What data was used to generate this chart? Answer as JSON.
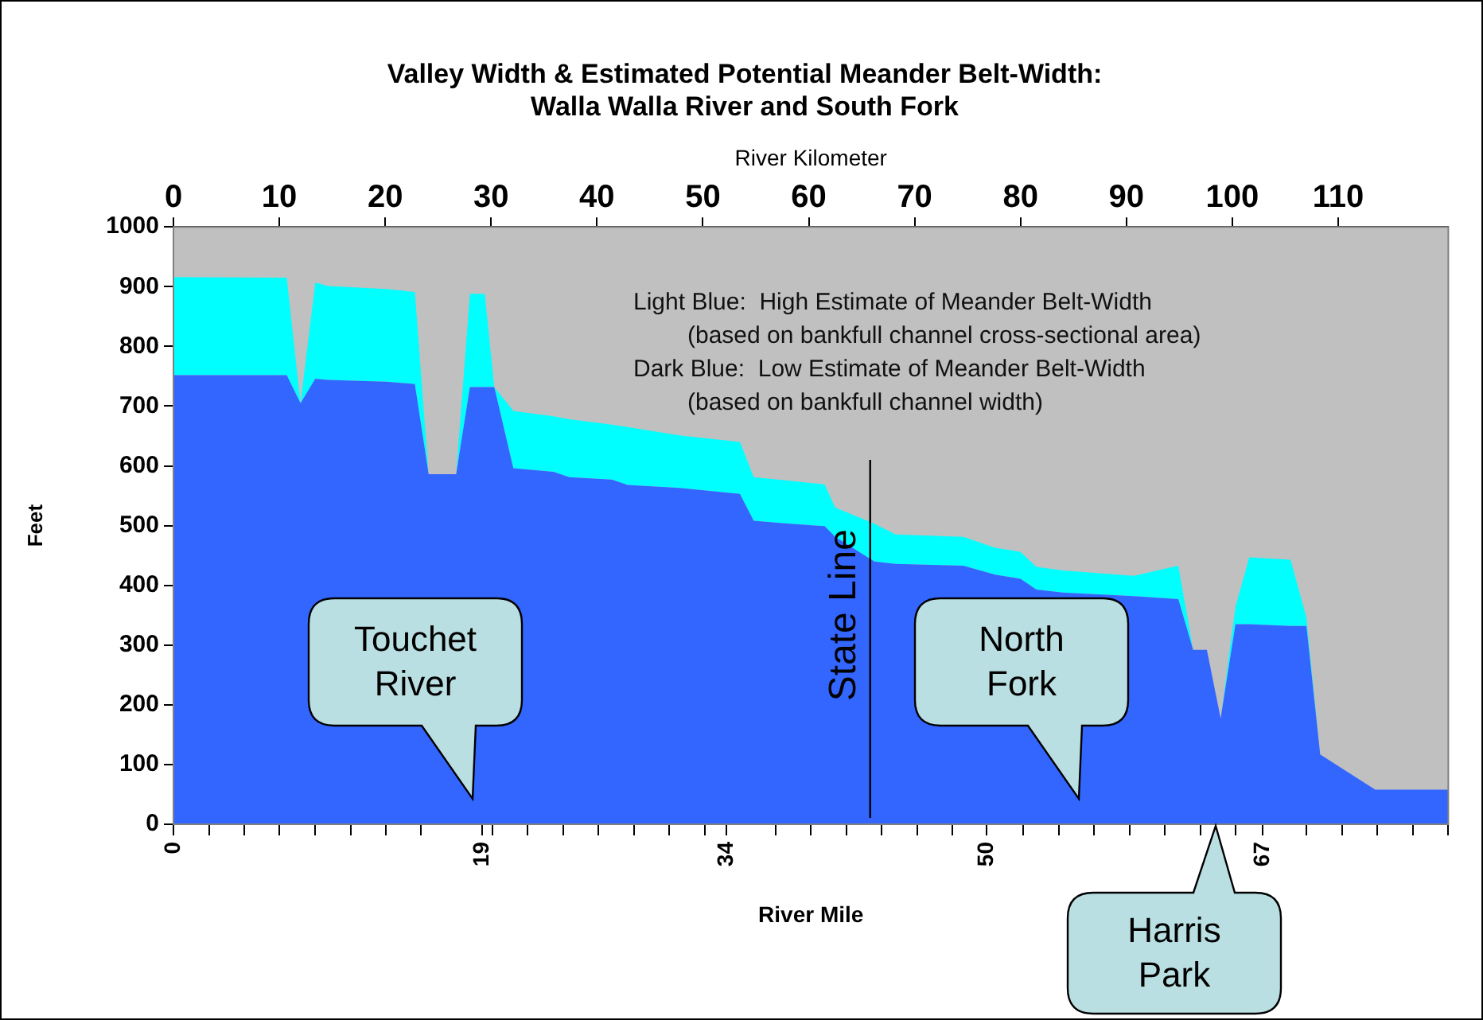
{
  "chart_data": {
    "type": "area",
    "title": "Valley Width & Estimated Potential Meander Belt-Width:\nWalla Walla River and South Fork",
    "xlabel": "River Kilometer",
    "x2label": "River Mile",
    "ylabel": "Feet",
    "stacked": true,
    "legend": false,
    "x": [
      0,
      10.7,
      12.0,
      13.4,
      14.6,
      20.1,
      22.8,
      24.1,
      26.7,
      28.0,
      29.4,
      30.3,
      32.1,
      35.9,
      37.4,
      41.4,
      42.9,
      47.8,
      53.5,
      54.8,
      58.2,
      61.5,
      62.5,
      66.2,
      68.2,
      74.6,
      77.6,
      80.0,
      81.5,
      84.0,
      90.7,
      94.9,
      96.3,
      97.6,
      98.9,
      100.3,
      101.6,
      105.5,
      107.0,
      108.3,
      113.5,
      120.4
    ],
    "series": [
      {
        "color": "#3366ff",
        "values": [
          752,
          752,
          705,
          746,
          744,
          741,
          737,
          586,
          586,
          732,
          732,
          732,
          596,
          590,
          581,
          577,
          568,
          563,
          553,
          508,
          503,
          499,
          481,
          440,
          436,
          433,
          418,
          411,
          393,
          388,
          382,
          377,
          292,
          292,
          177,
          335,
          335,
          332,
          332,
          117,
          58,
          58
        ]
      },
      {
        "color": "#00ffff",
        "values": [
          164,
          163,
          0,
          161,
          157,
          155,
          154,
          0,
          0,
          156,
          156,
          0,
          96,
          93,
          97,
          92,
          97,
          88,
          87,
          73,
          72,
          70,
          49,
          63,
          49,
          48,
          45,
          45,
          38,
          37,
          34,
          56,
          0,
          0,
          0,
          29,
          112,
          111,
          14,
          0,
          0,
          0
        ]
      }
    ],
    "xlim": [
      0,
      120.4
    ],
    "xticks": [
      0,
      10,
      20,
      30,
      40,
      50,
      60,
      70,
      80,
      90,
      100,
      110
    ],
    "x2lim": [
      0,
      78.4
    ],
    "x2ticks": [
      0,
      {
        "value": 2.18,
        "label": null
      },
      {
        "value": 4.36,
        "label": null
      },
      {
        "value": 6.53,
        "label": null
      },
      {
        "value": 8.71,
        "label": null
      },
      {
        "value": 10.89,
        "label": null
      },
      {
        "value": 13.07,
        "label": null
      },
      {
        "value": 15.24,
        "label": null
      },
      19,
      {
        "value": 19.6,
        "label": null
      },
      {
        "value": 21.78,
        "label": null
      },
      {
        "value": 23.96,
        "label": null
      },
      {
        "value": 26.13,
        "label": null
      },
      {
        "value": 28.31,
        "label": null
      },
      {
        "value": 30.49,
        "label": null
      },
      {
        "value": 32.67,
        "label": null
      },
      34,
      {
        "value": 37.02,
        "label": null
      },
      {
        "value": 39.2,
        "label": null
      },
      {
        "value": 41.38,
        "label": null
      },
      {
        "value": 43.56,
        "label": null
      },
      {
        "value": 45.73,
        "label": null
      },
      {
        "value": 47.91,
        "label": null
      },
      50,
      {
        "value": 52.27,
        "label": null
      },
      {
        "value": 54.44,
        "label": null
      },
      {
        "value": 56.62,
        "label": null
      },
      {
        "value": 58.8,
        "label": null
      },
      {
        "value": 60.98,
        "label": null
      },
      {
        "value": 63.16,
        "label": null
      },
      {
        "value": 65.33,
        "label": null
      },
      67,
      {
        "value": 69.69,
        "label": null
      },
      {
        "value": 71.87,
        "label": null
      },
      {
        "value": 74.04,
        "label": null
      },
      {
        "value": 76.22,
        "label": null
      },
      {
        "value": 78.4,
        "label": null
      }
    ],
    "ylim": [
      0,
      1000
    ],
    "yticks": [
      0,
      100,
      200,
      300,
      400,
      500,
      600,
      700,
      800,
      900,
      1000
    ],
    "ref_lines": [
      {
        "axis": "x",
        "value": 65.8,
        "label": "State Line"
      }
    ],
    "annotations": [
      "Light Blue:  High Estimate of Meander Belt-Width",
      "(based on bankfull channel cross-sectional area)",
      "Dark Blue:  Low Estimate of Meander Belt-Width",
      "(based on bankfull channel width)",
      "Touchet River",
      "North Fork",
      "Harris Park"
    ]
  }
}
